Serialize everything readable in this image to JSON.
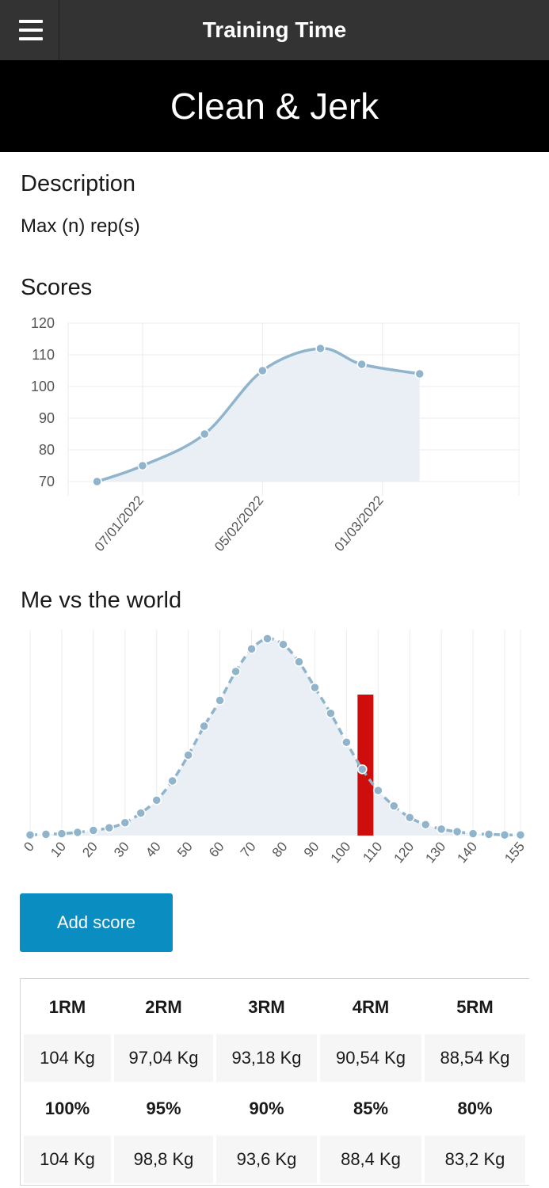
{
  "header": {
    "title": "Training Time",
    "menu_icon": "hamburger-icon"
  },
  "exercise": {
    "name": "Clean & Jerk"
  },
  "description": {
    "heading": "Description",
    "text": "Max (n) rep(s)"
  },
  "scores": {
    "heading": "Scores"
  },
  "world": {
    "heading": "Me vs the world"
  },
  "actions": {
    "add_score": "Add score"
  },
  "colors": {
    "line": "#8fb4cc",
    "fill": "#e9eff4",
    "marker": "#cc0000",
    "button": "#0a8ec2"
  },
  "chart_data": [
    {
      "type": "line",
      "name": "scores",
      "x_ticks": [
        "07/01/2022",
        "05/02/2022",
        "01/03/2022"
      ],
      "points": [
        {
          "date": "2021-12-27",
          "value": 70
        },
        {
          "date": "2022-01-07",
          "value": 75
        },
        {
          "date": "2022-01-22",
          "value": 85
        },
        {
          "date": "2022-02-05",
          "value": 105
        },
        {
          "date": "2022-02-19",
          "value": 112
        },
        {
          "date": "2022-03-01",
          "value": 107
        },
        {
          "date": "2022-03-15",
          "value": 104
        }
      ],
      "ylim": [
        70,
        120
      ],
      "y_ticks": [
        70,
        80,
        90,
        100,
        110,
        120
      ],
      "grid": true,
      "area_fill": true
    },
    {
      "type": "area",
      "name": "me-vs-the-world",
      "x": [
        0,
        5,
        10,
        15,
        20,
        25,
        30,
        35,
        40,
        45,
        50,
        55,
        60,
        65,
        70,
        75,
        80,
        85,
        90,
        95,
        100,
        105,
        110,
        115,
        120,
        125,
        130,
        135,
        140,
        145,
        150,
        155
      ],
      "values": [
        0.1,
        0.2,
        0.3,
        0.5,
        0.8,
        1.2,
        2.0,
        3.5,
        5.5,
        8.5,
        12.5,
        17.0,
        21.0,
        25.5,
        29.0,
        30.6,
        29.7,
        27.0,
        23.0,
        19.0,
        14.5,
        10.3,
        7.0,
        4.6,
        2.8,
        1.7,
        1.0,
        0.6,
        0.3,
        0.2,
        0.1,
        0.1
      ],
      "x_ticks": [
        0,
        10,
        20,
        30,
        40,
        50,
        60,
        70,
        80,
        90,
        100,
        110,
        120,
        130,
        140,
        155
      ],
      "marker": {
        "value": 104
      },
      "grid": true,
      "area_fill": true
    }
  ],
  "rm_table": {
    "rows": [
      {
        "kind": "head",
        "cells": [
          "1RM",
          "2RM",
          "3RM",
          "4RM",
          "5RM"
        ]
      },
      {
        "kind": "val",
        "cells": [
          "104 Kg",
          "97,04 Kg",
          "93,18 Kg",
          "90,54 Kg",
          "88,54 Kg"
        ]
      },
      {
        "kind": "head",
        "cells": [
          "100%",
          "95%",
          "90%",
          "85%",
          "80%"
        ]
      },
      {
        "kind": "val",
        "cells": [
          "104 Kg",
          "98,8 Kg",
          "93,6 Kg",
          "88,4 Kg",
          "83,2 Kg"
        ]
      }
    ]
  }
}
